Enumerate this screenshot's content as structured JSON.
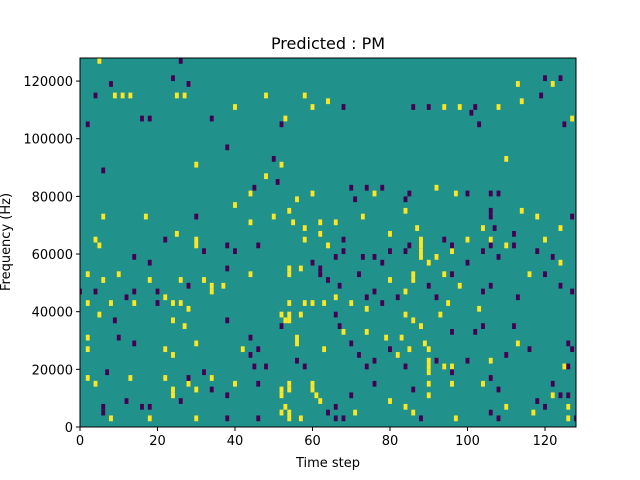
{
  "chart_data": {
    "type": "heatmap",
    "title": "Predicted : PM",
    "xlabel": "Time step",
    "ylabel": "Frequency (Hz)",
    "xlim": [
      0,
      128
    ],
    "ylim": [
      0,
      128000
    ],
    "x_ticks": [
      0,
      20,
      40,
      60,
      80,
      100,
      120
    ],
    "x_tick_labels": [
      "0",
      "20",
      "40",
      "60",
      "80",
      "100",
      "120"
    ],
    "y_ticks": [
      0,
      20000,
      40000,
      60000,
      80000,
      100000,
      120000
    ],
    "y_tick_labels": [
      "0",
      "20000",
      "40000",
      "60000",
      "80000",
      "100000",
      "120000"
    ],
    "grid": false,
    "colormap": "viridis",
    "background_value": 0,
    "background_color": "#21918c",
    "high_color": "#fde725",
    "low_color": "#440154",
    "bins": {
      "time_steps": 128,
      "frequency_bins": 64,
      "frequency_bin_hz": 2000
    },
    "high_cells": [
      [
        5,
        126000
      ],
      [
        9,
        114000
      ],
      [
        11,
        114000
      ],
      [
        13,
        114000
      ],
      [
        25,
        114000
      ],
      [
        27,
        114000
      ],
      [
        40,
        110000
      ],
      [
        48,
        114000
      ],
      [
        53,
        106000
      ],
      [
        58,
        114000
      ],
      [
        60,
        110000
      ],
      [
        64,
        112000
      ],
      [
        94,
        110000
      ],
      [
        98,
        110000
      ],
      [
        108,
        110000
      ],
      [
        113,
        118000
      ],
      [
        114,
        112000
      ],
      [
        122,
        118000
      ],
      [
        127,
        106000
      ],
      [
        30,
        90000
      ],
      [
        52,
        90000
      ],
      [
        110,
        92000
      ],
      [
        48,
        86000
      ],
      [
        44,
        80000
      ],
      [
        56,
        78000
      ],
      [
        60,
        80000
      ],
      [
        76,
        80000
      ],
      [
        92,
        82000
      ],
      [
        97,
        80000
      ],
      [
        40,
        76000
      ],
      [
        54,
        74000
      ],
      [
        62,
        70000
      ],
      [
        66,
        70000
      ],
      [
        73,
        72000
      ],
      [
        84,
        74000
      ],
      [
        114,
        74000
      ],
      [
        118,
        72000
      ],
      [
        6,
        72000
      ],
      [
        17,
        72000
      ],
      [
        44,
        70000
      ],
      [
        50,
        72000
      ],
      [
        55,
        70000
      ],
      [
        58,
        68000
      ],
      [
        4,
        64000
      ],
      [
        5,
        62000
      ],
      [
        25,
        66000
      ],
      [
        30,
        62000
      ],
      [
        30,
        64000
      ],
      [
        58,
        64000
      ],
      [
        62,
        66000
      ],
      [
        64,
        62000
      ],
      [
        80,
        66000
      ],
      [
        87,
        68000
      ],
      [
        88,
        64000
      ],
      [
        88,
        62000
      ],
      [
        88,
        60000
      ],
      [
        88,
        58000
      ],
      [
        90,
        56000
      ],
      [
        92,
        58000
      ],
      [
        96,
        60000
      ],
      [
        100,
        64000
      ],
      [
        104,
        68000
      ],
      [
        106,
        64000
      ],
      [
        110,
        62000
      ],
      [
        120,
        64000
      ],
      [
        124,
        68000
      ],
      [
        2,
        52000
      ],
      [
        6,
        50000
      ],
      [
        10,
        52000
      ],
      [
        18,
        50000
      ],
      [
        26,
        50000
      ],
      [
        32,
        50000
      ],
      [
        37,
        48000
      ],
      [
        44,
        52000
      ],
      [
        54,
        52000
      ],
      [
        54,
        54000
      ],
      [
        57,
        54000
      ],
      [
        80,
        50000
      ],
      [
        86,
        50000
      ],
      [
        94,
        52000
      ],
      [
        98,
        48000
      ],
      [
        116,
        52000
      ],
      [
        124,
        56000
      ],
      [
        2,
        42000
      ],
      [
        5,
        38000
      ],
      [
        8,
        42000
      ],
      [
        14,
        42000
      ],
      [
        22,
        44000
      ],
      [
        24,
        42000
      ],
      [
        24,
        36000
      ],
      [
        27,
        34000
      ],
      [
        26,
        42000
      ],
      [
        28,
        40000
      ],
      [
        34,
        48000
      ],
      [
        34,
        46000
      ],
      [
        54,
        42000
      ],
      [
        54,
        38000
      ],
      [
        54,
        36000
      ],
      [
        53,
        36000
      ],
      [
        52,
        38000
      ],
      [
        57,
        38000
      ],
      [
        58,
        42000
      ],
      [
        60,
        42000
      ],
      [
        63,
        42000
      ],
      [
        66,
        44000
      ],
      [
        70,
        42000
      ],
      [
        74,
        40000
      ],
      [
        84,
        38000
      ],
      [
        84,
        46000
      ],
      [
        86,
        36000
      ],
      [
        88,
        34000
      ],
      [
        93,
        38000
      ],
      [
        95,
        42000
      ],
      [
        103,
        40000
      ],
      [
        86,
        52000
      ],
      [
        2,
        30000
      ],
      [
        2,
        26000
      ],
      [
        22,
        26000
      ],
      [
        24,
        24000
      ],
      [
        30,
        28000
      ],
      [
        42,
        26000
      ],
      [
        56,
        28000
      ],
      [
        56,
        30000
      ],
      [
        63,
        26000
      ],
      [
        68,
        32000
      ],
      [
        74,
        32000
      ],
      [
        79,
        30000
      ],
      [
        83,
        30000
      ],
      [
        82,
        24000
      ],
      [
        85,
        26000
      ],
      [
        89,
        28000
      ],
      [
        90,
        26000
      ],
      [
        90,
        22000
      ],
      [
        90,
        20000
      ],
      [
        90,
        18000
      ],
      [
        94,
        20000
      ],
      [
        96,
        20000
      ],
      [
        106,
        22000
      ],
      [
        113,
        28000
      ],
      [
        125,
        20000
      ],
      [
        2,
        16000
      ],
      [
        4,
        14000
      ],
      [
        13,
        16000
      ],
      [
        22,
        16000
      ],
      [
        24,
        12000
      ],
      [
        24,
        10000
      ],
      [
        28,
        14000
      ],
      [
        30,
        12000
      ],
      [
        34,
        16000
      ],
      [
        40,
        14000
      ],
      [
        52,
        12000
      ],
      [
        54,
        14000
      ],
      [
        54,
        12000
      ],
      [
        52,
        10000
      ],
      [
        53,
        6000
      ],
      [
        54,
        4000
      ],
      [
        54,
        2000
      ],
      [
        52,
        4000
      ],
      [
        60,
        14000
      ],
      [
        60,
        12000
      ],
      [
        61,
        10000
      ],
      [
        62,
        8000
      ],
      [
        57,
        2000
      ],
      [
        71,
        4000
      ],
      [
        80,
        8000
      ],
      [
        84,
        6000
      ],
      [
        86,
        4000
      ],
      [
        90,
        10000
      ],
      [
        90,
        14000
      ],
      [
        96,
        14000
      ],
      [
        97,
        2000
      ],
      [
        104,
        14000
      ],
      [
        110,
        6000
      ],
      [
        117,
        4000
      ],
      [
        122,
        10000
      ],
      [
        126,
        2000
      ],
      [
        126,
        6000
      ],
      [
        30,
        2000
      ],
      [
        18,
        2000
      ],
      [
        8,
        2000
      ]
    ],
    "low_cells": [
      [
        26,
        126000
      ],
      [
        4,
        114000
      ],
      [
        8,
        118000
      ],
      [
        18,
        106000
      ],
      [
        16,
        106000
      ],
      [
        24,
        120000
      ],
      [
        28,
        118000
      ],
      [
        34,
        106000
      ],
      [
        68,
        110000
      ],
      [
        86,
        110000
      ],
      [
        90,
        110000
      ],
      [
        102,
        110000
      ],
      [
        101,
        108000
      ],
      [
        119,
        114000
      ],
      [
        120,
        120000
      ],
      [
        124,
        120000
      ],
      [
        125,
        104000
      ],
      [
        103,
        104000
      ],
      [
        52,
        104000
      ],
      [
        2,
        104000
      ],
      [
        38,
        96000
      ],
      [
        50,
        92000
      ],
      [
        6,
        88000
      ],
      [
        45,
        82000
      ],
      [
        51,
        84000
      ],
      [
        70,
        82000
      ],
      [
        74,
        82000
      ],
      [
        84,
        78000
      ],
      [
        85,
        80000
      ],
      [
        78,
        82000
      ],
      [
        100,
        80000
      ],
      [
        106,
        80000
      ],
      [
        108,
        80000
      ],
      [
        71,
        78000
      ],
      [
        30,
        72000
      ],
      [
        106,
        74000
      ],
      [
        106,
        72000
      ],
      [
        107,
        68000
      ],
      [
        106,
        62000
      ],
      [
        104,
        60000
      ],
      [
        22,
        64000
      ],
      [
        32,
        60000
      ],
      [
        38,
        62000
      ],
      [
        40,
        60000
      ],
      [
        46,
        62000
      ],
      [
        68,
        64000
      ],
      [
        68,
        60000
      ],
      [
        66,
        58000
      ],
      [
        73,
        58000
      ],
      [
        76,
        58000
      ],
      [
        78,
        56000
      ],
      [
        80,
        60000
      ],
      [
        84,
        60000
      ],
      [
        85,
        62000
      ],
      [
        94,
        64000
      ],
      [
        96,
        62000
      ],
      [
        100,
        56000
      ],
      [
        108,
        58000
      ],
      [
        112,
        62000
      ],
      [
        112,
        66000
      ],
      [
        118,
        60000
      ],
      [
        122,
        58000
      ],
      [
        127,
        72000
      ],
      [
        14,
        58000
      ],
      [
        4,
        46000
      ],
      [
        18,
        56000
      ],
      [
        28,
        48000
      ],
      [
        38,
        54000
      ],
      [
        60,
        56000
      ],
      [
        62,
        54000
      ],
      [
        62,
        52000
      ],
      [
        64,
        50000
      ],
      [
        67,
        48000
      ],
      [
        72,
        52000
      ],
      [
        74,
        44000
      ],
      [
        76,
        46000
      ],
      [
        78,
        42000
      ],
      [
        82,
        44000
      ],
      [
        90,
        48000
      ],
      [
        92,
        44000
      ],
      [
        96,
        52000
      ],
      [
        104,
        46000
      ],
      [
        106,
        48000
      ],
      [
        113,
        44000
      ],
      [
        120,
        52000
      ],
      [
        124,
        48000
      ],
      [
        127,
        46000
      ],
      [
        0,
        46000
      ],
      [
        9,
        36000
      ],
      [
        12,
        44000
      ],
      [
        14,
        46000
      ],
      [
        20,
        46000
      ],
      [
        20,
        42000
      ],
      [
        14,
        28000
      ],
      [
        10,
        30000
      ],
      [
        38,
        36000
      ],
      [
        44,
        30000
      ],
      [
        44,
        24000
      ],
      [
        45,
        20000
      ],
      [
        46,
        26000
      ],
      [
        48,
        20000
      ],
      [
        52,
        34000
      ],
      [
        56,
        22000
      ],
      [
        58,
        20000
      ],
      [
        66,
        38000
      ],
      [
        67,
        34000
      ],
      [
        70,
        28000
      ],
      [
        72,
        24000
      ],
      [
        74,
        20000
      ],
      [
        76,
        22000
      ],
      [
        80,
        26000
      ],
      [
        84,
        20000
      ],
      [
        92,
        22000
      ],
      [
        100,
        22000
      ],
      [
        106,
        16000
      ],
      [
        108,
        12000
      ],
      [
        110,
        24000
      ],
      [
        112,
        34000
      ],
      [
        104,
        34000
      ],
      [
        102,
        32000
      ],
      [
        96,
        32000
      ],
      [
        116,
        26000
      ],
      [
        122,
        14000
      ],
      [
        126,
        28000
      ],
      [
        126,
        20000
      ],
      [
        127,
        26000
      ],
      [
        7,
        18000
      ],
      [
        12,
        8000
      ],
      [
        16,
        6000
      ],
      [
        18,
        6000
      ],
      [
        26,
        8000
      ],
      [
        28,
        16000
      ],
      [
        32,
        18000
      ],
      [
        34,
        12000
      ],
      [
        38,
        2000
      ],
      [
        38,
        10000
      ],
      [
        46,
        2000
      ],
      [
        46,
        14000
      ],
      [
        64,
        4000
      ],
      [
        66,
        6000
      ],
      [
        66,
        2000
      ],
      [
        68,
        2000
      ],
      [
        70,
        10000
      ],
      [
        76,
        14000
      ],
      [
        86,
        12000
      ],
      [
        88,
        2000
      ],
      [
        96,
        18000
      ],
      [
        106,
        4000
      ],
      [
        108,
        2000
      ],
      [
        118,
        8000
      ],
      [
        120,
        6000
      ],
      [
        124,
        10000
      ],
      [
        126,
        10000
      ],
      [
        128,
        2000
      ],
      [
        6,
        4000
      ],
      [
        6,
        6000
      ]
    ]
  }
}
